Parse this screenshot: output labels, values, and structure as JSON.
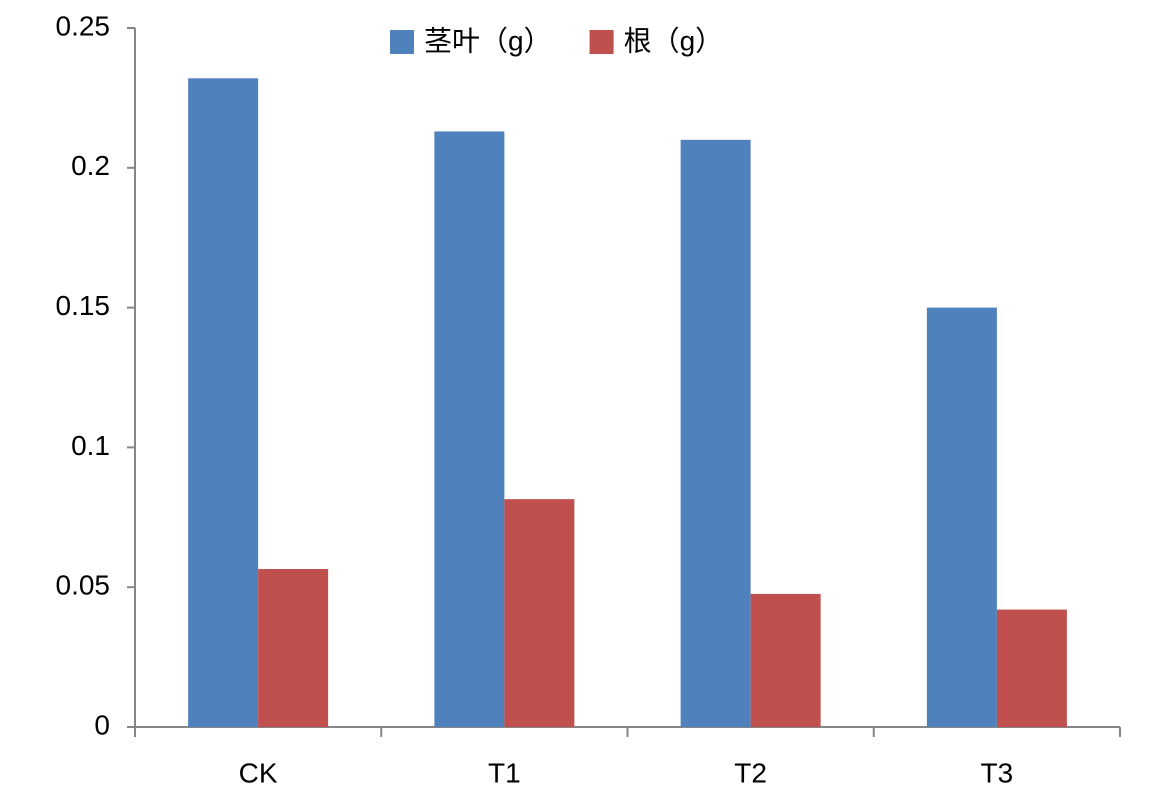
{
  "chart_data": {
    "type": "bar",
    "categories": [
      "CK",
      "T1",
      "T2",
      "T3"
    ],
    "series": [
      {
        "name": "茎叶（g）",
        "color": "#4f81bd",
        "values": [
          0.232,
          0.213,
          0.21,
          0.15
        ]
      },
      {
        "name": "根（g）",
        "color": "#c0504d",
        "values": [
          0.0565,
          0.0815,
          0.0476,
          0.042
        ]
      }
    ],
    "ylim": [
      0,
      0.25
    ],
    "yticks": [
      0,
      0.05,
      0.1,
      0.15,
      0.2,
      0.25
    ],
    "grid": false,
    "legend": "top"
  }
}
